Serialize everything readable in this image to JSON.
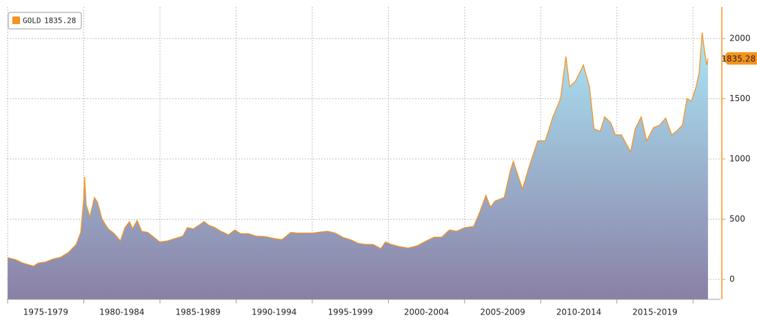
{
  "chart_data": {
    "type": "area",
    "series": [
      {
        "name": "GOLD",
        "color": "#f7931e",
        "x": [
          1975.0,
          1975.5,
          1976.0,
          1976.7,
          1977.0,
          1977.5,
          1978.0,
          1978.5,
          1979.0,
          1979.5,
          1979.8,
          1980.0,
          1980.05,
          1980.15,
          1980.4,
          1980.7,
          1980.9,
          1981.2,
          1981.6,
          1982.0,
          1982.4,
          1982.7,
          1983.0,
          1983.2,
          1983.5,
          1983.8,
          1984.2,
          1984.6,
          1985.0,
          1985.5,
          1986.0,
          1986.5,
          1986.8,
          1987.2,
          1987.9,
          1988.2,
          1988.6,
          1989.0,
          1989.5,
          1989.9,
          1990.3,
          1990.8,
          1991.3,
          1991.9,
          1992.5,
          1993.0,
          1993.6,
          1994.0,
          1995.0,
          1996.0,
          1996.5,
          1997.0,
          1997.6,
          1998.0,
          1998.5,
          1999.0,
          1999.5,
          1999.8,
          2000.2,
          2000.8,
          2001.3,
          2001.9,
          2002.5,
          2003.0,
          2003.5,
          2004.0,
          2004.5,
          2005.0,
          2005.6,
          2006.0,
          2006.4,
          2006.7,
          2007.0,
          2007.6,
          2008.0,
          2008.2,
          2008.8,
          2009.2,
          2009.8,
          2010.3,
          2010.8,
          2011.3,
          2011.65,
          2011.9,
          2012.3,
          2012.8,
          2013.2,
          2013.5,
          2013.9,
          2014.2,
          2014.6,
          2014.9,
          2015.3,
          2015.9,
          2016.2,
          2016.6,
          2016.95,
          2017.4,
          2017.8,
          2018.2,
          2018.6,
          2018.9,
          2019.3,
          2019.6,
          2019.9,
          2020.2,
          2020.4,
          2020.6,
          2020.75,
          2020.9,
          2020.98
        ],
        "values": [
          180,
          165,
          135,
          110,
          135,
          145,
          170,
          185,
          225,
          290,
          390,
          680,
          850,
          620,
          520,
          680,
          640,
          500,
          420,
          380,
          320,
          430,
          480,
          420,
          490,
          400,
          390,
          350,
          310,
          320,
          340,
          360,
          430,
          420,
          480,
          450,
          430,
          400,
          370,
          410,
          380,
          380,
          360,
          355,
          340,
          330,
          390,
          385,
          385,
          400,
          385,
          350,
          325,
          300,
          290,
          290,
          255,
          310,
          290,
          270,
          260,
          280,
          320,
          350,
          350,
          410,
          400,
          430,
          440,
          560,
          700,
          600,
          650,
          680,
          900,
          980,
          750,
          920,
          1150,
          1150,
          1350,
          1500,
          1850,
          1600,
          1650,
          1780,
          1600,
          1250,
          1230,
          1350,
          1300,
          1200,
          1200,
          1060,
          1250,
          1350,
          1150,
          1260,
          1280,
          1340,
          1200,
          1230,
          1280,
          1500,
          1480,
          1600,
          1720,
          2050,
          1900,
          1780,
          1835.28
        ]
      }
    ],
    "area_colors": [
      "#abe4f4",
      "#8a80a6"
    ],
    "xlim": [
      1974.95,
      2021.8
    ],
    "xticks": [
      1975,
      1980,
      1985,
      1990,
      1995,
      2000,
      2005,
      2010,
      2015,
      2020
    ],
    "x_period_labels": [
      "1975-1979",
      "1980-1984",
      "1985-1989",
      "1990-1994",
      "1995-1999",
      "2000-2004",
      "2005-2009",
      "2010-2014",
      "2015-2019"
    ],
    "ylim": [
      -166,
      2263
    ],
    "yticks": [
      0,
      500,
      1000,
      1500,
      2000
    ],
    "grid": true,
    "y_axis_side": "right",
    "legend_position": "upper left"
  }
}
